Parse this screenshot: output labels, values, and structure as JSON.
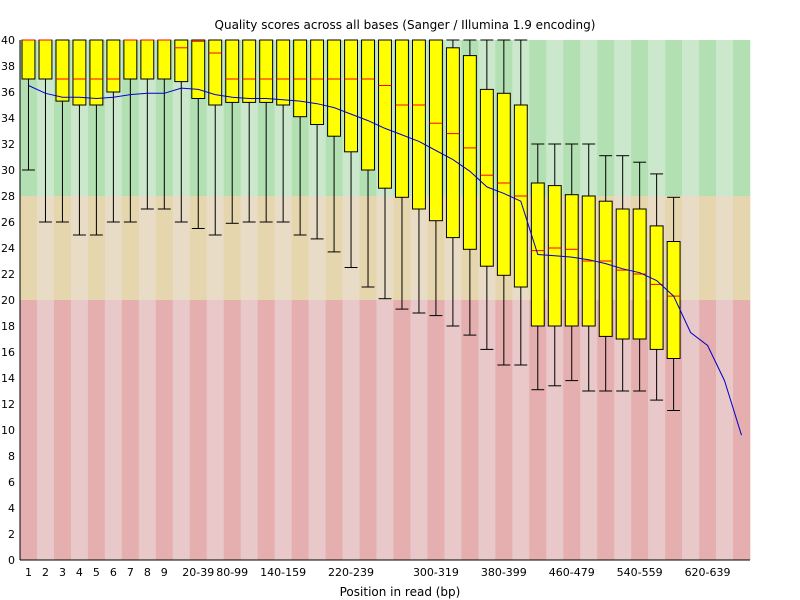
{
  "chart_data": {
    "type": "boxplot",
    "title": "Quality scores across all bases (Sanger / Illumina 1.9 encoding)",
    "xlabel": "Position in read (bp)",
    "ylabel": "",
    "ylim": [
      0,
      40
    ],
    "y_ticks": [
      0,
      2,
      4,
      6,
      8,
      10,
      12,
      14,
      16,
      18,
      20,
      22,
      24,
      26,
      28,
      30,
      32,
      34,
      36,
      38,
      40
    ],
    "bands": [
      {
        "from": 28,
        "to": 40,
        "colors": [
          "#b2e0b2",
          "#cce8cc"
        ]
      },
      {
        "from": 20,
        "to": 28,
        "colors": [
          "#e6d6ae",
          "#e8dcc6"
        ]
      },
      {
        "from": 0,
        "to": 20,
        "colors": [
          "#e6afaf",
          "#e8c8c8"
        ]
      }
    ],
    "colors": {
      "box": "#ffff00",
      "box_border": "#000000",
      "median": "#ff0000",
      "mean": "#0000cc",
      "whisker": "#000000"
    },
    "categories": [
      "1",
      "2",
      "3",
      "4",
      "5",
      "6",
      "7",
      "8",
      "9",
      "10-19",
      "20-39",
      "40-59",
      "60-79",
      "80-99",
      "100-119",
      "120-139",
      "140-159",
      "160-179",
      "180-199",
      "200-219",
      "220-239",
      "240-259",
      "260-279",
      "280-299",
      "300-319",
      "320-339",
      "340-359",
      "360-379",
      "380-399",
      "400-419",
      "420-439",
      "440-459",
      "460-479",
      "480-499",
      "500-519",
      "520-539",
      "540-559",
      "560-579",
      "580-599",
      "600-619",
      "620-639",
      "640-659",
      "660-679"
    ],
    "x_tick_labels": {
      "0": "1",
      "1": "2",
      "2": "3",
      "3": "4",
      "4": "5",
      "5": "6",
      "6": "7",
      "7": "8",
      "8": "9",
      "10": "20-39",
      "12": "80-99",
      "15": "140-159",
      "19": "220-239",
      "24": "300-319",
      "28": "380-399",
      "32": "460-479",
      "36": "540-559",
      "40": "620-639"
    },
    "boxes": [
      {
        "q1": 37,
        "median": 40,
        "q3": 40,
        "low": 30,
        "high": 40
      },
      {
        "q1": 37,
        "median": 40,
        "q3": 40,
        "low": 26,
        "high": 40
      },
      {
        "q1": 35.3,
        "median": 37,
        "q3": 40,
        "low": 26,
        "high": 40
      },
      {
        "q1": 35,
        "median": 37,
        "q3": 40,
        "low": 25,
        "high": 40
      },
      {
        "q1": 35,
        "median": 37,
        "q3": 40,
        "low": 25,
        "high": 40
      },
      {
        "q1": 36,
        "median": 37,
        "q3": 40,
        "low": 26,
        "high": 40
      },
      {
        "q1": 37,
        "median": 40,
        "q3": 40,
        "low": 26,
        "high": 40
      },
      {
        "q1": 37,
        "median": 40,
        "q3": 40,
        "low": 27,
        "high": 40
      },
      {
        "q1": 37,
        "median": 40,
        "q3": 40,
        "low": 27,
        "high": 40
      },
      {
        "q1": 36.8,
        "median": 39.4,
        "q3": 40,
        "low": 26,
        "high": 40
      },
      {
        "q1": 35.5,
        "median": 39.9,
        "q3": 40,
        "low": 25.5,
        "high": 40
      },
      {
        "q1": 35,
        "median": 39,
        "q3": 40,
        "low": 25,
        "high": 40
      },
      {
        "q1": 35.2,
        "median": 37,
        "q3": 40,
        "low": 25.9,
        "high": 40
      },
      {
        "q1": 35.2,
        "median": 37,
        "q3": 40,
        "low": 26,
        "high": 40
      },
      {
        "q1": 35.2,
        "median": 37,
        "q3": 40,
        "low": 26,
        "high": 40
      },
      {
        "q1": 35,
        "median": 37,
        "q3": 40,
        "low": 26,
        "high": 40
      },
      {
        "q1": 34.1,
        "median": 37,
        "q3": 40,
        "low": 25,
        "high": 40
      },
      {
        "q1": 33.5,
        "median": 37,
        "q3": 40,
        "low": 24.7,
        "high": 40
      },
      {
        "q1": 32.6,
        "median": 37,
        "q3": 40,
        "low": 23.7,
        "high": 40
      },
      {
        "q1": 31.4,
        "median": 37,
        "q3": 40,
        "low": 22.5,
        "high": 40
      },
      {
        "q1": 30,
        "median": 37,
        "q3": 40,
        "low": 21,
        "high": 40
      },
      {
        "q1": 28.6,
        "median": 36.5,
        "q3": 40,
        "low": 20.1,
        "high": 40
      },
      {
        "q1": 27.9,
        "median": 35,
        "q3": 40,
        "low": 19.3,
        "high": 40
      },
      {
        "q1": 27,
        "median": 35,
        "q3": 40,
        "low": 19,
        "high": 40
      },
      {
        "q1": 26.1,
        "median": 33.6,
        "q3": 40,
        "low": 18.8,
        "high": 40
      },
      {
        "q1": 24.8,
        "median": 32.8,
        "q3": 39.4,
        "low": 18,
        "high": 40
      },
      {
        "q1": 23.9,
        "median": 31.7,
        "q3": 38.8,
        "low": 17.3,
        "high": 40
      },
      {
        "q1": 22.6,
        "median": 29.6,
        "q3": 36.2,
        "low": 16.2,
        "high": 40
      },
      {
        "q1": 21.9,
        "median": 29,
        "q3": 35.9,
        "low": 15,
        "high": 40
      },
      {
        "q1": 21,
        "median": 28,
        "q3": 35,
        "low": 15,
        "high": 40
      },
      {
        "q1": 18,
        "median": 23.8,
        "q3": 29,
        "low": 13.1,
        "high": 32
      },
      {
        "q1": 18,
        "median": 24,
        "q3": 28.8,
        "low": 13.4,
        "high": 32
      },
      {
        "q1": 18,
        "median": 23.9,
        "q3": 28.1,
        "low": 13.8,
        "high": 32
      },
      {
        "q1": 18,
        "median": 23,
        "q3": 28,
        "low": 13,
        "high": 32
      },
      {
        "q1": 17.2,
        "median": 23,
        "q3": 27.6,
        "low": 13,
        "high": 31.1
      },
      {
        "q1": 17,
        "median": 22.3,
        "q3": 27,
        "low": 13,
        "high": 31.1
      },
      {
        "q1": 17,
        "median": 22,
        "q3": 27,
        "low": 13,
        "high": 30.6
      },
      {
        "q1": 16.2,
        "median": 21.2,
        "q3": 25.7,
        "low": 12.3,
        "high": 29.7
      },
      {
        "q1": 15.5,
        "median": 20.3,
        "q3": 24.5,
        "low": 11.5,
        "high": 27.9
      },
      null,
      null,
      null,
      null
    ],
    "mean": [
      36.5,
      35.9,
      35.6,
      35.6,
      35.5,
      35.6,
      35.8,
      35.9,
      35.9,
      36.3,
      36.2,
      35.8,
      35.6,
      35.5,
      35.5,
      35.4,
      35.3,
      35.1,
      34.8,
      34.3,
      33.8,
      33.2,
      32.7,
      32.2,
      31.5,
      30.8,
      29.9,
      28.7,
      28.2,
      27.6,
      23.5,
      23.4,
      23.3,
      23.1,
      22.8,
      22.4,
      22.1,
      21.5,
      20.3,
      17.5,
      16.5,
      13.8,
      9.6
    ]
  }
}
